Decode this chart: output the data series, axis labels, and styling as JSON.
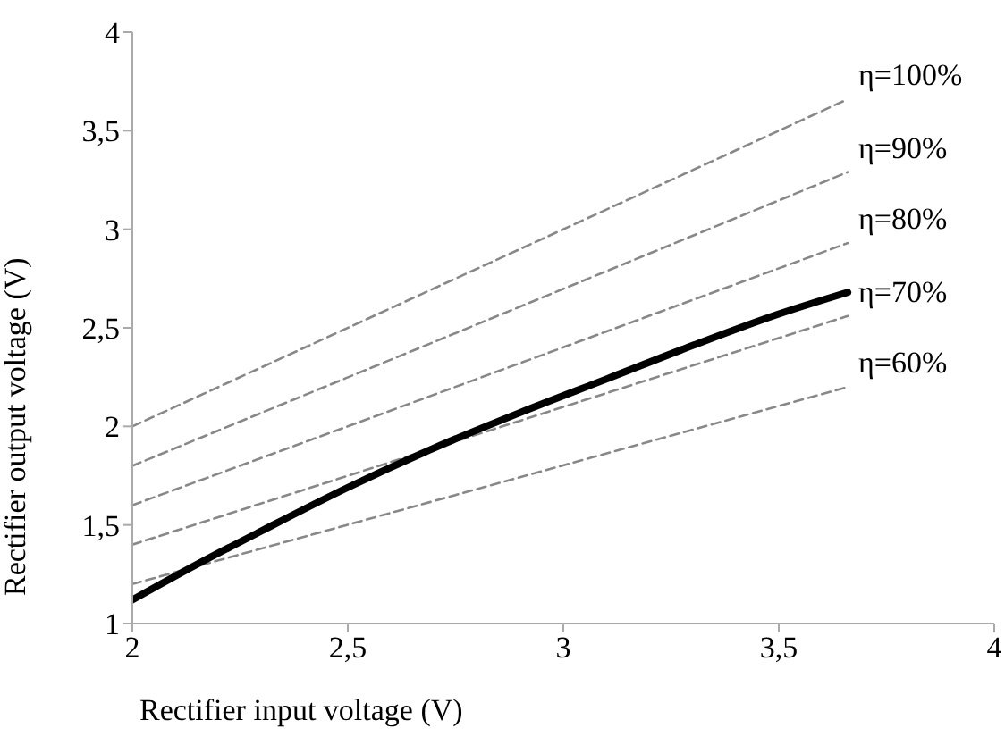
{
  "chart_data": {
    "type": "line",
    "xlabel": "Rectifier input voltage (V)",
    "ylabel": "Rectifier output voltage (V)",
    "xlim": [
      2,
      4
    ],
    "xticks": [
      2,
      {
        "value": 2.5,
        "label": "2,5"
      },
      3,
      {
        "value": 3.5,
        "label": "3,5"
      },
      4
    ],
    "ylim": [
      1,
      4
    ],
    "yticks": [
      1,
      {
        "value": 1.5,
        "label": "1,5"
      },
      2,
      {
        "value": 2.5,
        "label": "2,5"
      },
      3,
      {
        "value": 3.5,
        "label": "3,5"
      },
      4
    ],
    "grid": false,
    "marker": "none",
    "series": [
      {
        "name": "η=100%",
        "color": "#888888",
        "line_style": "dashed",
        "x": [
          2,
          3.66
        ],
        "values": [
          2,
          3.66
        ]
      },
      {
        "name": "η=90%",
        "color": "#888888",
        "line_style": "dashed",
        "x": [
          2,
          3.66
        ],
        "values": [
          1.8,
          3.29
        ]
      },
      {
        "name": "η=80%",
        "color": "#888888",
        "line_style": "dashed",
        "x": [
          2,
          3.66
        ],
        "values": [
          1.6,
          2.93
        ]
      },
      {
        "name": "η=70%",
        "color": "#888888",
        "line_style": "dashed",
        "x": [
          2,
          3.66
        ],
        "values": [
          1.4,
          2.56
        ]
      },
      {
        "name": "η=60%",
        "color": "#888888",
        "line_style": "dashed",
        "x": [
          2,
          3.66
        ],
        "values": [
          1.2,
          2.2
        ]
      },
      {
        "color": "#000000",
        "line_style": "solid",
        "x": [
          2,
          2.15,
          2.3,
          2.5,
          2.7,
          2.9,
          3.1,
          3.3,
          3.5,
          3.66
        ],
        "values": [
          1.12,
          1.3,
          1.47,
          1.69,
          1.89,
          2.07,
          2.24,
          2.41,
          2.57,
          2.68
        ]
      }
    ]
  }
}
